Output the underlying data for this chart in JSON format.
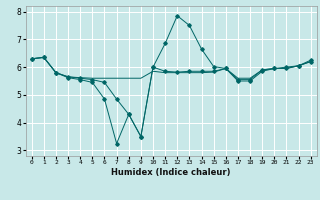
{
  "xlabel": "Humidex (Indice chaleur)",
  "bg_color": "#c8e8e8",
  "grid_color": "#ffffff",
  "line_color": "#006666",
  "xlim": [
    -0.5,
    23.5
  ],
  "ylim": [
    2.8,
    8.2
  ],
  "yticks": [
    3,
    4,
    5,
    6,
    7,
    8
  ],
  "xticks": [
    0,
    1,
    2,
    3,
    4,
    5,
    6,
    7,
    8,
    9,
    10,
    11,
    12,
    13,
    14,
    15,
    16,
    17,
    18,
    19,
    20,
    21,
    22,
    23
  ],
  "series0": {
    "x": [
      0,
      1,
      2,
      3,
      4,
      5,
      6,
      7,
      8,
      9,
      10,
      11,
      12,
      13,
      14,
      15,
      16,
      17,
      18,
      19,
      20,
      21,
      22,
      23
    ],
    "y": [
      6.3,
      6.35,
      5.8,
      5.65,
      5.62,
      5.6,
      5.6,
      5.6,
      5.6,
      5.6,
      5.85,
      5.8,
      5.8,
      5.8,
      5.8,
      5.82,
      5.95,
      5.6,
      5.6,
      5.9,
      5.95,
      5.95,
      6.05,
      6.2
    ]
  },
  "series1": {
    "x": [
      0,
      1,
      2,
      3,
      4,
      5,
      6,
      7,
      8,
      9,
      10,
      11,
      12,
      13,
      14,
      15,
      16,
      17,
      18,
      19,
      20,
      21,
      22,
      23
    ],
    "y": [
      6.3,
      6.35,
      5.8,
      5.62,
      5.55,
      5.45,
      4.85,
      3.25,
      4.3,
      3.5,
      6.0,
      6.85,
      7.85,
      7.5,
      6.65,
      6.02,
      5.95,
      5.5,
      5.5,
      5.85,
      5.95,
      6.0,
      6.05,
      6.25
    ]
  },
  "series2": {
    "x": [
      0,
      1,
      2,
      3,
      4,
      5,
      6,
      7,
      8,
      9,
      10,
      11,
      12,
      13,
      14,
      15,
      16,
      17,
      18,
      19,
      20,
      21,
      22,
      23
    ],
    "y": [
      6.3,
      6.35,
      5.8,
      5.65,
      5.6,
      5.55,
      5.45,
      4.85,
      4.3,
      3.5,
      6.0,
      5.85,
      5.82,
      5.85,
      5.85,
      5.85,
      5.95,
      5.55,
      5.55,
      5.9,
      5.95,
      5.95,
      6.05,
      6.2
    ]
  }
}
